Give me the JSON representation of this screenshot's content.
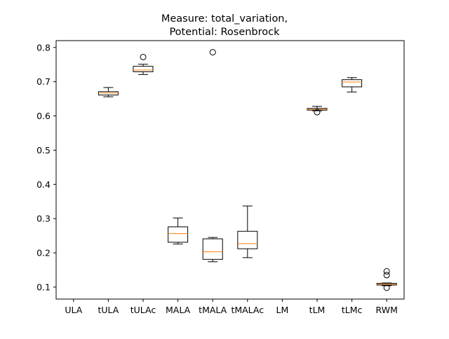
{
  "chart_data": {
    "type": "box",
    "title_lines": [
      "Measure: total_variation,",
      "Potential: Rosenbrock"
    ],
    "xlabel": "",
    "ylabel": "",
    "ylim": [
      0.065,
      0.82
    ],
    "yticks": [
      0.1,
      0.2,
      0.3,
      0.4,
      0.5,
      0.6,
      0.7,
      0.8
    ],
    "ytick_labels": [
      "0.1",
      "0.2",
      "0.3",
      "0.4",
      "0.5",
      "0.6",
      "0.7",
      "0.8"
    ],
    "grid": false,
    "categories": [
      "ULA",
      "tULA",
      "tULAc",
      "MALA",
      "tMALA",
      "tMALAc",
      "LM",
      "tLM",
      "tLMc",
      "RWM"
    ],
    "boxes": [
      null,
      {
        "whislo": 0.656,
        "q1": 0.661,
        "med": 0.667,
        "q3": 0.671,
        "whishi": 0.683,
        "fliers": []
      },
      {
        "whislo": 0.721,
        "q1": 0.729,
        "med": 0.734,
        "q3": 0.745,
        "whishi": 0.751,
        "fliers": [
          0.772
        ]
      },
      {
        "whislo": 0.226,
        "q1": 0.231,
        "med": 0.256,
        "q3": 0.276,
        "whishi": 0.302,
        "fliers": []
      },
      {
        "whislo": 0.174,
        "q1": 0.181,
        "med": 0.203,
        "q3": 0.241,
        "whishi": 0.245,
        "fliers": [
          0.786
        ]
      },
      {
        "whislo": 0.186,
        "q1": 0.212,
        "med": 0.227,
        "q3": 0.263,
        "whishi": 0.337,
        "fliers": []
      },
      null,
      {
        "whislo": 0.615,
        "q1": 0.617,
        "med": 0.619,
        "q3": 0.622,
        "whishi": 0.628,
        "fliers": [
          0.611
        ]
      },
      {
        "whislo": 0.67,
        "q1": 0.685,
        "med": 0.699,
        "q3": 0.706,
        "whishi": 0.712,
        "fliers": []
      },
      {
        "whislo": 0.104,
        "q1": 0.106,
        "med": 0.108,
        "q3": 0.111,
        "whishi": 0.112,
        "fliers": [
          0.098,
          0.135,
          0.146
        ]
      }
    ],
    "colors": {
      "box": "#000000",
      "median": "#ff7f0e",
      "flier": "#000000"
    }
  }
}
